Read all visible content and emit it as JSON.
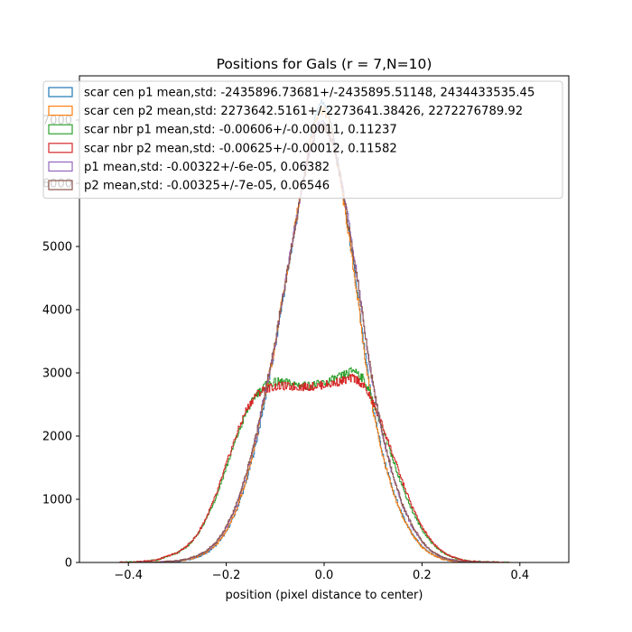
{
  "chart_data": {
    "type": "line",
    "title": "Positions for Gals (r = 7,N=10)",
    "xlabel": "position (pixel distance to center)",
    "ylabel": "",
    "xlim": [
      -0.5,
      0.5
    ],
    "ylim": [
      0,
      7700
    ],
    "x_ticks": [
      -0.4,
      -0.2,
      0.0,
      0.2,
      0.4
    ],
    "x_tick_labels": [
      "−0.4",
      "−0.2",
      "0.0",
      "0.2",
      "0.4"
    ],
    "y_ticks": [
      0,
      1000,
      2000,
      3000,
      4000,
      5000,
      6000,
      7000
    ],
    "y_tick_labels": [
      "0",
      "1000",
      "2000",
      "3000",
      "4000",
      "5000",
      "6000",
      "7000"
    ],
    "legend_position": "top",
    "grid": false,
    "histtype": "step",
    "x": [
      -0.42,
      -0.38,
      -0.34,
      -0.3,
      -0.28,
      -0.26,
      -0.24,
      -0.22,
      -0.2,
      -0.18,
      -0.16,
      -0.14,
      -0.12,
      -0.1,
      -0.09,
      -0.08,
      -0.07,
      -0.06,
      -0.05,
      -0.04,
      -0.03,
      -0.02,
      -0.01,
      0.0,
      0.01,
      0.02,
      0.03,
      0.04,
      0.05,
      0.06,
      0.07,
      0.08,
      0.09,
      0.1,
      0.12,
      0.14,
      0.16,
      0.18,
      0.2,
      0.22,
      0.24,
      0.26,
      0.28,
      0.3,
      0.34,
      0.38,
      0.42
    ],
    "series": [
      {
        "name": "scar cen p1 mean,std: -2435896.73681+/-2435895.51148, 2434433535.45",
        "color": "#1f77b4",
        "values": [
          0,
          0,
          5,
          20,
          40,
          80,
          150,
          280,
          480,
          800,
          1250,
          1850,
          2600,
          3400,
          3900,
          4350,
          4800,
          5250,
          5700,
          6150,
          6600,
          7000,
          7250,
          7300,
          7100,
          6700,
          6250,
          5750,
          5250,
          4700,
          4150,
          3500,
          2950,
          2450,
          1700,
          1150,
          750,
          450,
          250,
          130,
          60,
          25,
          10,
          5,
          0,
          0,
          0
        ]
      },
      {
        "name": "scar cen p2 mean,std: 2273642.5161+/-2273641.38426, 2272276789.92",
        "color": "#ff7f0e",
        "values": [
          0,
          0,
          5,
          20,
          45,
          85,
          160,
          290,
          500,
          820,
          1280,
          1900,
          2650,
          3450,
          3950,
          4400,
          4850,
          5300,
          5750,
          6200,
          6600,
          6950,
          7150,
          7150,
          7000,
          6650,
          6200,
          5700,
          5200,
          4650,
          4100,
          3450,
          2900,
          2400,
          1680,
          1120,
          730,
          440,
          240,
          125,
          55,
          25,
          10,
          5,
          0,
          0,
          0
        ]
      },
      {
        "name": "scar nbr p1 mean,std: -0.00606+/-0.00011, 0.11237",
        "color": "#2ca02c",
        "values": [
          0,
          10,
          40,
          150,
          250,
          420,
          700,
          1050,
          1500,
          1950,
          2350,
          2650,
          2800,
          2850,
          2860,
          2850,
          2830,
          2820,
          2810,
          2800,
          2800,
          2810,
          2820,
          2840,
          2870,
          2900,
          2930,
          2960,
          3000,
          3050,
          3000,
          2900,
          2750,
          2550,
          2100,
          1650,
          1200,
          820,
          520,
          310,
          170,
          90,
          45,
          20,
          5,
          0,
          0
        ]
      },
      {
        "name": "scar nbr p2 mean,std: -0.00625+/-0.00012, 0.11582",
        "color": "#d62728",
        "values": [
          0,
          10,
          45,
          155,
          260,
          430,
          720,
          1080,
          1550,
          2000,
          2400,
          2650,
          2750,
          2780,
          2790,
          2790,
          2780,
          2780,
          2780,
          2780,
          2780,
          2790,
          2800,
          2810,
          2820,
          2840,
          2860,
          2880,
          2900,
          2920,
          2880,
          2800,
          2680,
          2520,
          2150,
          1720,
          1280,
          880,
          560,
          330,
          180,
          95,
          45,
          20,
          5,
          0,
          0
        ]
      },
      {
        "name": "p1 mean,std: -0.00322+/-6e-05, 0.06382",
        "color": "#9467bd",
        "values": [
          0,
          0,
          5,
          25,
          55,
          100,
          180,
          320,
          540,
          880,
          1350,
          1950,
          2700,
          3450,
          3950,
          4400,
          4850,
          5300,
          5750,
          6150,
          6500,
          6800,
          6950,
          6950,
          6850,
          6600,
          6250,
          5850,
          5400,
          4900,
          4400,
          3850,
          3300,
          2800,
          2000,
          1380,
          900,
          560,
          320,
          170,
          85,
          40,
          15,
          5,
          0,
          0,
          0
        ]
      },
      {
        "name": "p2 mean,std: -0.00325+/-7e-05, 0.06546",
        "color": "#8c564b",
        "values": [
          0,
          0,
          5,
          25,
          55,
          105,
          190,
          330,
          560,
          900,
          1380,
          1980,
          2720,
          3450,
          3950,
          4380,
          4820,
          5250,
          5700,
          6100,
          6450,
          6750,
          6900,
          6900,
          6800,
          6550,
          6200,
          5800,
          5350,
          4880,
          4380,
          3850,
          3320,
          2820,
          2030,
          1400,
          920,
          580,
          330,
          175,
          90,
          42,
          16,
          5,
          0,
          0,
          0
        ]
      }
    ]
  }
}
